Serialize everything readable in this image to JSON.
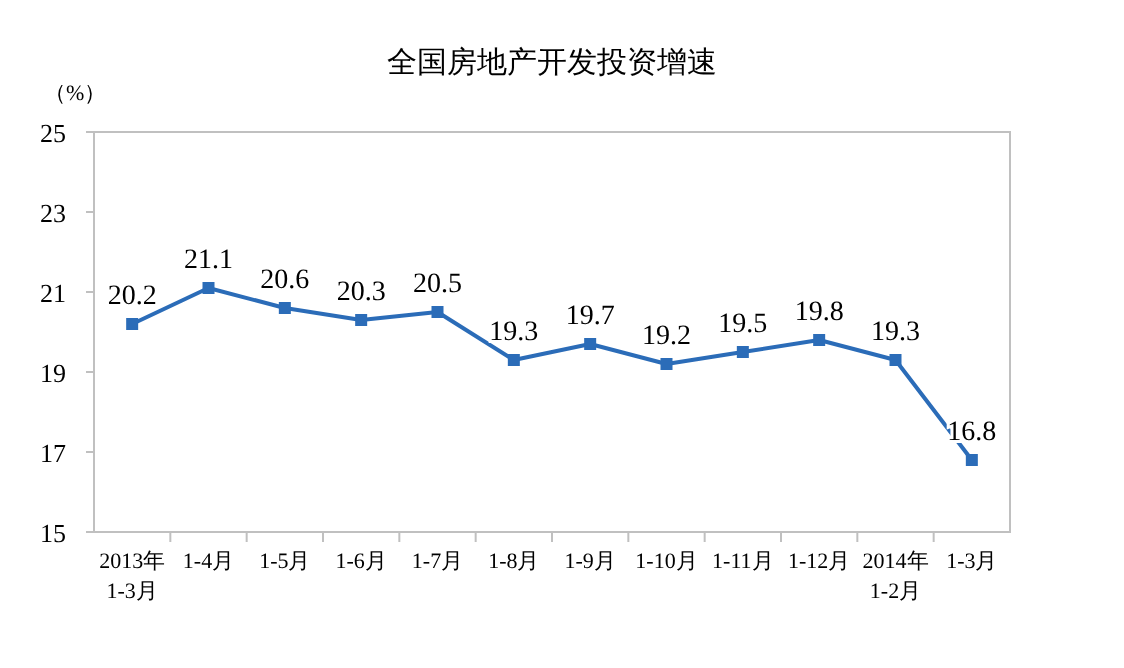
{
  "chart_data": {
    "type": "line",
    "title": "全国房地产开发投资增速",
    "ylabel": "（%）",
    "categories": [
      "2013年 1-3月",
      "1-4月",
      "1-5月",
      "1-6月",
      "1-7月",
      "1-8月",
      "1-9月",
      "1-10月",
      "1-11月",
      "1-12月",
      "2014年 1-2月",
      "1-3月"
    ],
    "series": [
      {
        "color": "#2b6cb8",
        "values": [
          20.2,
          21.1,
          20.6,
          20.3,
          20.5,
          19.3,
          19.7,
          19.2,
          19.5,
          19.8,
          19.3,
          16.8
        ]
      }
    ],
    "ylim": [
      15,
      25
    ],
    "yticks": [
      15,
      17,
      19,
      21,
      23,
      25
    ],
    "marker": "square",
    "data_labels": true
  }
}
